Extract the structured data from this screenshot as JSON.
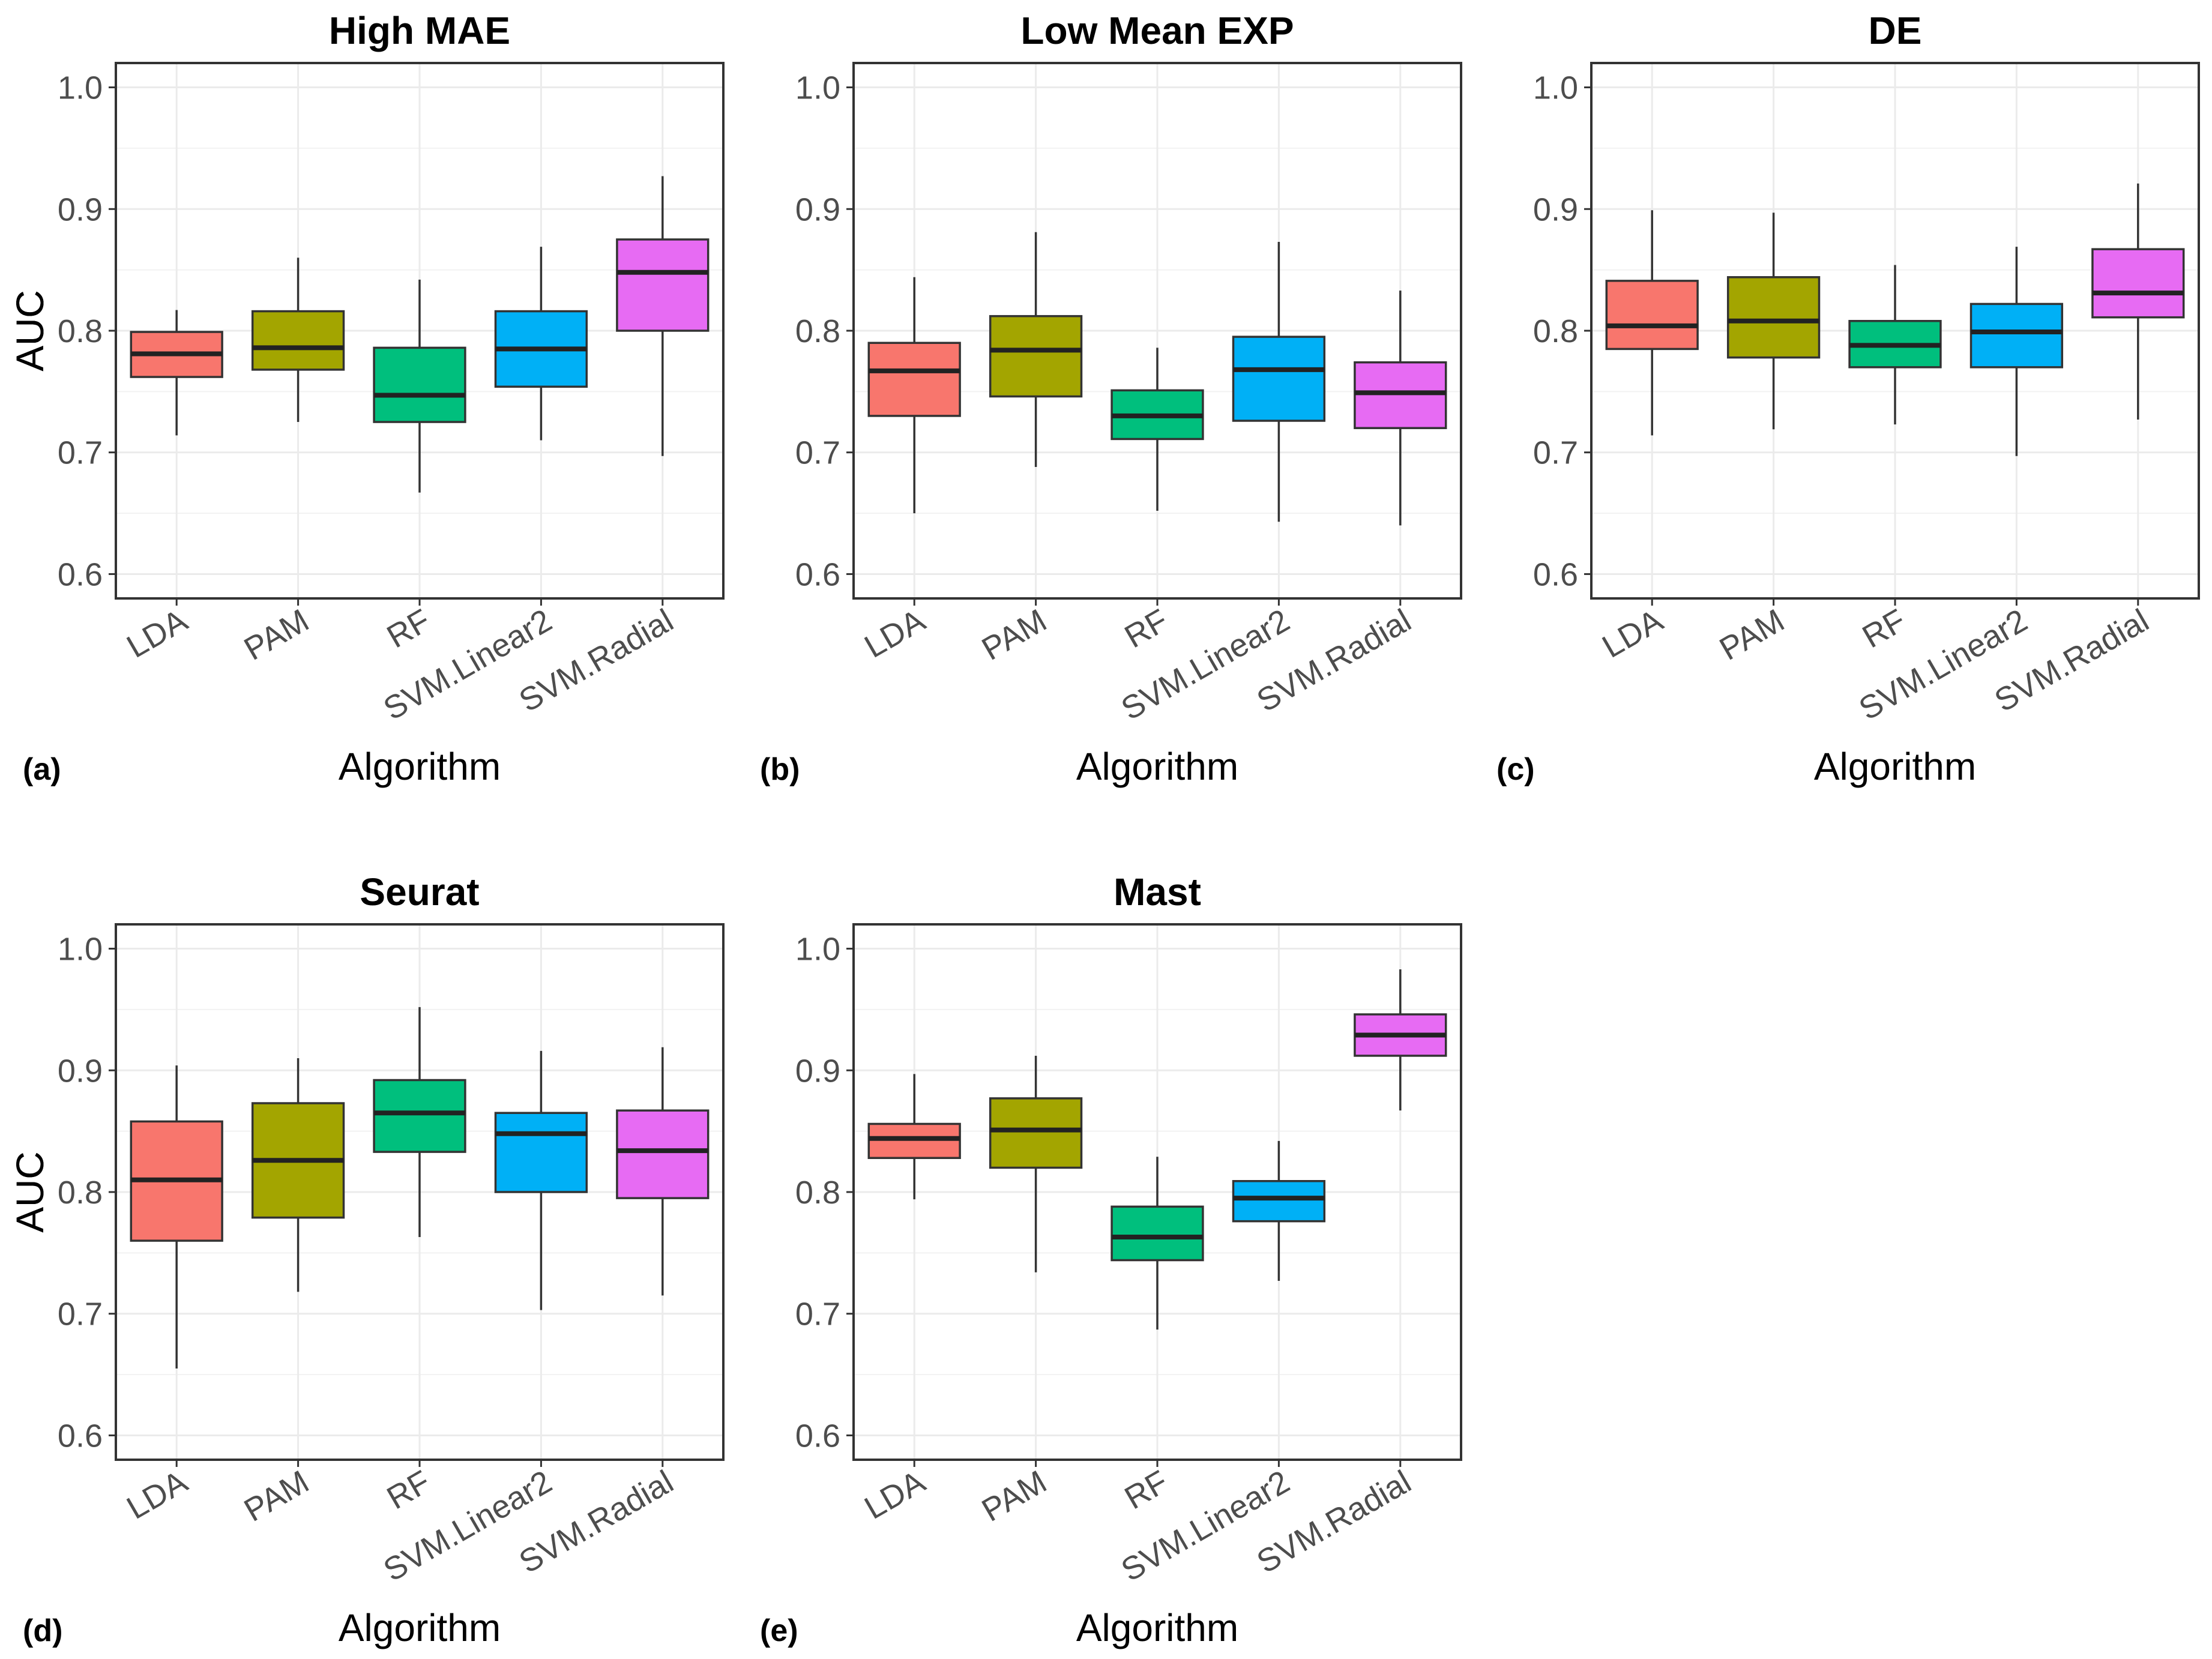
{
  "chart_data": [
    {
      "type": "box",
      "tag": "(a)",
      "title": "High MAE",
      "xlabel": "Algorithm",
      "ylabel": "AUC",
      "ylim": [
        0.58,
        1.02
      ],
      "yticks": [
        "0.6",
        "0.7",
        "0.8",
        "0.9",
        "1.0"
      ],
      "categories": [
        "LDA",
        "PAM",
        "RF",
        "SVM.Linear2",
        "SVM.Radial"
      ],
      "boxes": [
        {
          "min": 0.714,
          "q1": 0.762,
          "median": 0.781,
          "q3": 0.799,
          "max": 0.817
        },
        {
          "min": 0.725,
          "q1": 0.768,
          "median": 0.786,
          "q3": 0.816,
          "max": 0.86
        },
        {
          "min": 0.667,
          "q1": 0.725,
          "median": 0.747,
          "q3": 0.786,
          "max": 0.842
        },
        {
          "min": 0.71,
          "q1": 0.754,
          "median": 0.785,
          "q3": 0.816,
          "max": 0.869
        },
        {
          "min": 0.697,
          "q1": 0.8,
          "median": 0.848,
          "q3": 0.875,
          "max": 0.927
        }
      ]
    },
    {
      "type": "box",
      "tag": "(b)",
      "title": "Low Mean EXP",
      "xlabel": "Algorithm",
      "ylabel": "AUC",
      "ylim": [
        0.58,
        1.02
      ],
      "yticks": [
        "0.6",
        "0.7",
        "0.8",
        "0.9",
        "1.0"
      ],
      "categories": [
        "LDA",
        "PAM",
        "RF",
        "SVM.Linear2",
        "SVM.Radial"
      ],
      "boxes": [
        {
          "min": 0.65,
          "q1": 0.73,
          "median": 0.767,
          "q3": 0.79,
          "max": 0.844
        },
        {
          "min": 0.688,
          "q1": 0.746,
          "median": 0.784,
          "q3": 0.812,
          "max": 0.881
        },
        {
          "min": 0.652,
          "q1": 0.711,
          "median": 0.73,
          "q3": 0.751,
          "max": 0.786
        },
        {
          "min": 0.643,
          "q1": 0.726,
          "median": 0.768,
          "q3": 0.795,
          "max": 0.873
        },
        {
          "min": 0.64,
          "q1": 0.72,
          "median": 0.749,
          "q3": 0.774,
          "max": 0.833
        }
      ]
    },
    {
      "type": "box",
      "tag": "(c)",
      "title": "DE",
      "xlabel": "Algorithm",
      "ylabel": "AUC",
      "ylim": [
        0.58,
        1.02
      ],
      "yticks": [
        "0.6",
        "0.7",
        "0.8",
        "0.9",
        "1.0"
      ],
      "categories": [
        "LDA",
        "PAM",
        "RF",
        "SVM.Linear2",
        "SVM.Radial"
      ],
      "boxes": [
        {
          "min": 0.714,
          "q1": 0.785,
          "median": 0.804,
          "q3": 0.841,
          "max": 0.899
        },
        {
          "min": 0.719,
          "q1": 0.778,
          "median": 0.808,
          "q3": 0.844,
          "max": 0.897
        },
        {
          "min": 0.723,
          "q1": 0.77,
          "median": 0.788,
          "q3": 0.808,
          "max": 0.854
        },
        {
          "min": 0.697,
          "q1": 0.77,
          "median": 0.799,
          "q3": 0.822,
          "max": 0.869
        },
        {
          "min": 0.727,
          "q1": 0.811,
          "median": 0.831,
          "q3": 0.867,
          "max": 0.921
        }
      ]
    },
    {
      "type": "box",
      "tag": "(d)",
      "title": "Seurat",
      "xlabel": "Algorithm",
      "ylabel": "AUC",
      "ylim": [
        0.58,
        1.02
      ],
      "yticks": [
        "0.6",
        "0.7",
        "0.8",
        "0.9",
        "1.0"
      ],
      "categories": [
        "LDA",
        "PAM",
        "RF",
        "SVM.Linear2",
        "SVM.Radial"
      ],
      "boxes": [
        {
          "min": 0.655,
          "q1": 0.76,
          "median": 0.81,
          "q3": 0.858,
          "max": 0.904
        },
        {
          "min": 0.718,
          "q1": 0.779,
          "median": 0.826,
          "q3": 0.873,
          "max": 0.91
        },
        {
          "min": 0.763,
          "q1": 0.833,
          "median": 0.865,
          "q3": 0.892,
          "max": 0.952
        },
        {
          "min": 0.703,
          "q1": 0.8,
          "median": 0.848,
          "q3": 0.865,
          "max": 0.916
        },
        {
          "min": 0.715,
          "q1": 0.795,
          "median": 0.834,
          "q3": 0.867,
          "max": 0.919
        }
      ]
    },
    {
      "type": "box",
      "tag": "(e)",
      "title": "Mast",
      "xlabel": "Algorithm",
      "ylabel": "AUC",
      "ylim": [
        0.58,
        1.02
      ],
      "yticks": [
        "0.6",
        "0.7",
        "0.8",
        "0.9",
        "1.0"
      ],
      "categories": [
        "LDA",
        "PAM",
        "RF",
        "SVM.Linear2",
        "SVM.Radial"
      ],
      "boxes": [
        {
          "min": 0.794,
          "q1": 0.828,
          "median": 0.844,
          "q3": 0.856,
          "max": 0.897
        },
        {
          "min": 0.734,
          "q1": 0.82,
          "median": 0.851,
          "q3": 0.877,
          "max": 0.912
        },
        {
          "min": 0.687,
          "q1": 0.744,
          "median": 0.763,
          "q3": 0.788,
          "max": 0.829
        },
        {
          "min": 0.727,
          "q1": 0.776,
          "median": 0.795,
          "q3": 0.809,
          "max": 0.842
        },
        {
          "min": 0.867,
          "q1": 0.912,
          "median": 0.929,
          "q3": 0.946,
          "max": 0.983
        }
      ]
    }
  ],
  "colors": {
    "LDA": "#F8766D",
    "PAM": "#A3A500",
    "RF": "#00BF7D",
    "SVM.Linear2": "#00B0F6",
    "SVM.Radial": "#E76BF3"
  }
}
